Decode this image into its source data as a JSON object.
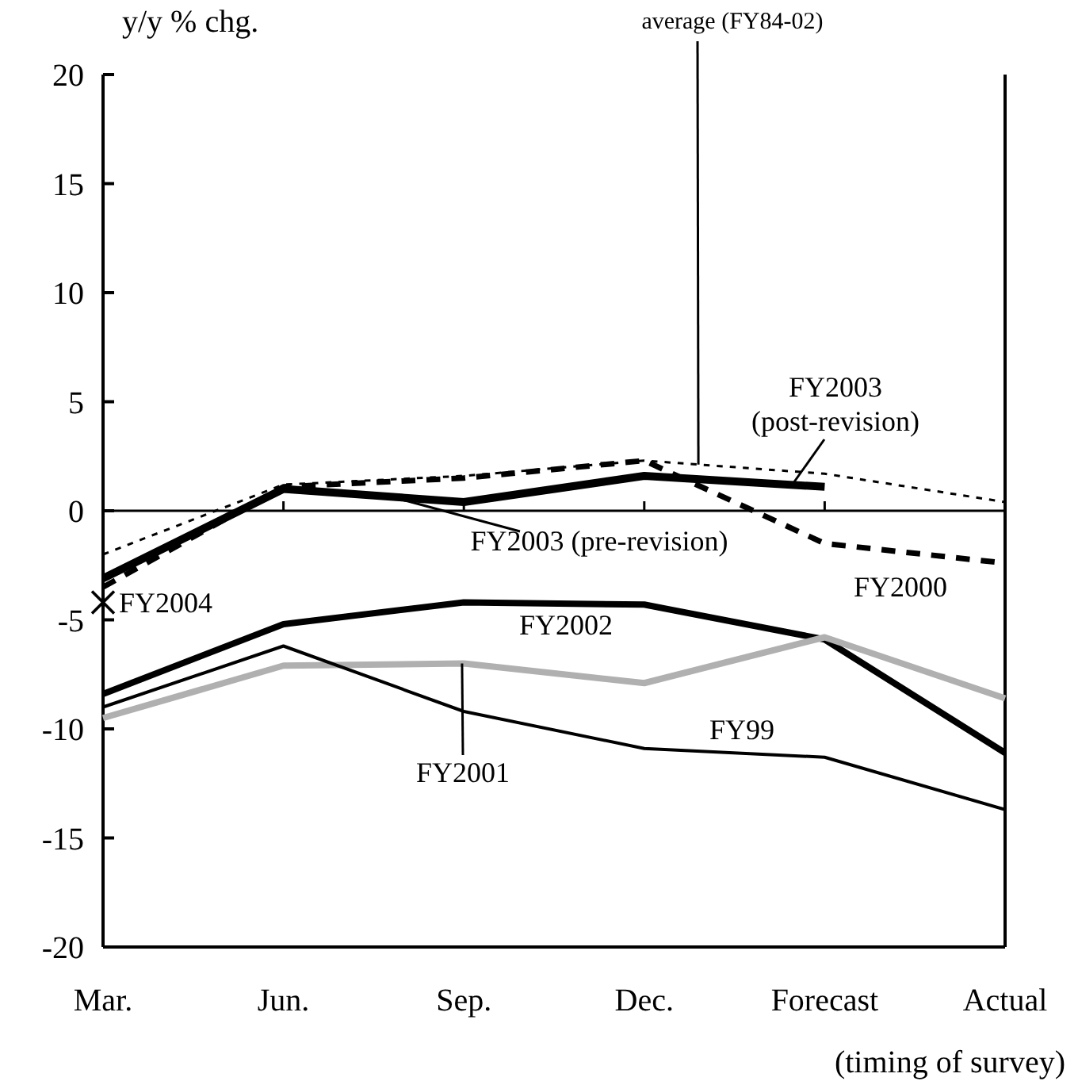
{
  "chart_data": {
    "type": "line",
    "ylabel": "y/y % chg.",
    "xlabel": "(timing of survey)",
    "categories": [
      "Mar.",
      "Jun.",
      "Sep.",
      "Dec.",
      "Forecast",
      "Actual"
    ],
    "ylim": [
      -20,
      20
    ],
    "yticks": [
      -20,
      -15,
      -10,
      -5,
      0,
      5,
      10,
      15,
      20
    ],
    "ref_lines": [
      {
        "axis": "y",
        "value": 0,
        "color": "#000000"
      }
    ],
    "grid": false,
    "marker": "none",
    "annotations": [
      {
        "text": "FY2003 (post-revision)",
        "x": "Forecast",
        "y": 1.1
      }
    ],
    "series": [
      {
        "name": "average (FY84-02)",
        "color": "#000000",
        "line_style": "dotted",
        "values": [
          -2.0,
          1.2,
          1.6,
          2.3,
          1.7,
          0.4
        ]
      },
      {
        "name": "FY2003 (pre-revision)",
        "color": "#000000",
        "values": [
          -3.1,
          1.0,
          0.4,
          1.6,
          1.1,
          null
        ]
      },
      {
        "name": "FY2000",
        "color": "#000000",
        "line_style": "dashed",
        "values": [
          -3.5,
          1.1,
          1.5,
          2.3,
          -1.5,
          -2.4
        ]
      },
      {
        "name": "FY2004",
        "type": "scatter",
        "marker": "cross",
        "color": "#000000",
        "values": [
          -4.2,
          null,
          null,
          null,
          null,
          null
        ]
      },
      {
        "name": "FY2002",
        "color": "#000000",
        "values": [
          -8.4,
          -5.2,
          -4.2,
          -4.3,
          -5.9,
          -11.1
        ]
      },
      {
        "name": "FY2001",
        "color": "#b0b0b0",
        "values": [
          -9.5,
          -7.1,
          -7.0,
          -7.9,
          -5.8,
          -8.6
        ]
      },
      {
        "name": "FY99",
        "color": "#000000",
        "values": [
          -9.0,
          -6.2,
          -9.2,
          -10.9,
          -11.3,
          -13.7
        ]
      }
    ]
  }
}
